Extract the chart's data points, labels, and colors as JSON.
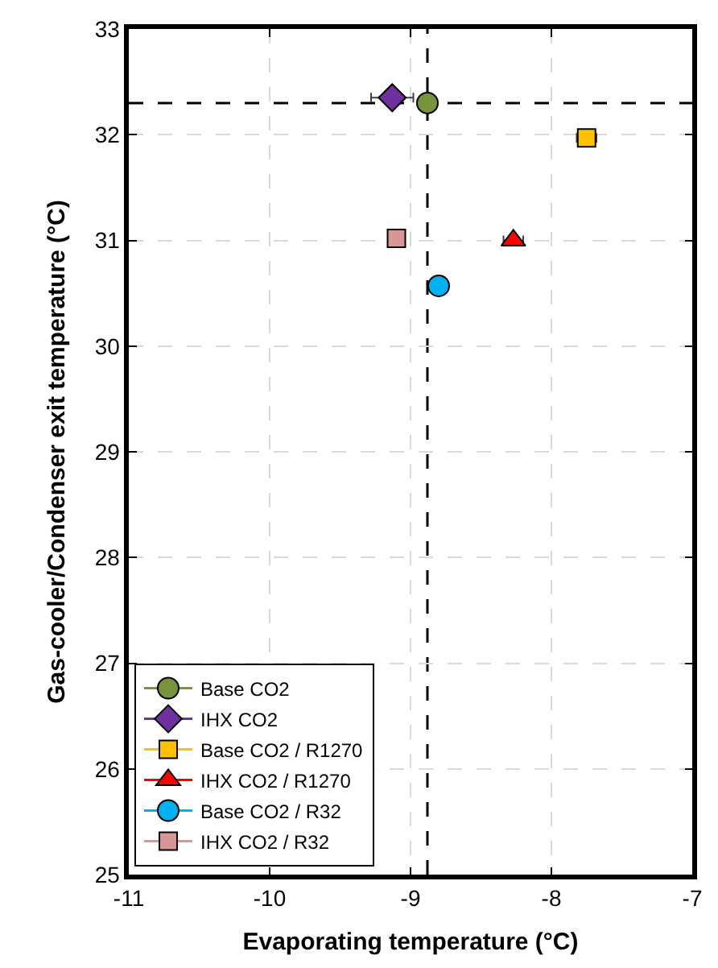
{
  "chart_data": {
    "type": "scatter",
    "xlabel": "Evaporating temperature (°C)",
    "ylabel": "Gas-cooler/Condenser exit temperature (°C)",
    "xlim": [
      -11,
      -7
    ],
    "xticks": [
      -11,
      -10,
      -9,
      -8,
      -7
    ],
    "ylim": [
      25,
      33
    ],
    "yticks": [
      25,
      26,
      27,
      28,
      29,
      30,
      31,
      32,
      33
    ],
    "grid": true,
    "legend": "bottom left",
    "series": [
      {
        "name": "Base CO2",
        "color": "#77933c",
        "marker": "circle",
        "x": [
          -8.88
        ],
        "values": [
          32.3
        ]
      },
      {
        "name": "IHX CO2",
        "color": "#7030a0",
        "marker": "diamond",
        "x": [
          -9.13
        ],
        "values": [
          32.35
        ],
        "errors": [
          0.08
        ],
        "xerrors": [
          0.15
        ]
      },
      {
        "name": "Base CO2 / R1270",
        "color": "#ffc000",
        "marker": "square",
        "x": [
          -7.75
        ],
        "values": [
          31.97
        ],
        "xerrors": [
          0.07
        ]
      },
      {
        "name": "IHX CO2 / R1270",
        "color": "#ff0000",
        "marker": "triangle",
        "x": [
          -8.27
        ],
        "values": [
          31.0
        ],
        "errors": [
          0.05
        ],
        "xerrors": [
          0.07
        ]
      },
      {
        "name": "Base CO2 / R32",
        "color": "#00b0f0",
        "marker": "circle",
        "x": [
          -8.8
        ],
        "values": [
          30.57
        ]
      },
      {
        "name": "IHX CO2 / R32",
        "color": "#da9694",
        "marker": "square",
        "x": [
          -9.1
        ],
        "values": [
          31.02
        ]
      }
    ],
    "ref_lines": [
      {
        "axis": "x",
        "value": -8.88,
        "line_style": "dashed",
        "color": "#000000"
      },
      {
        "axis": "y",
        "value": 32.3,
        "line_style": "dashed",
        "color": "#000000"
      }
    ]
  }
}
